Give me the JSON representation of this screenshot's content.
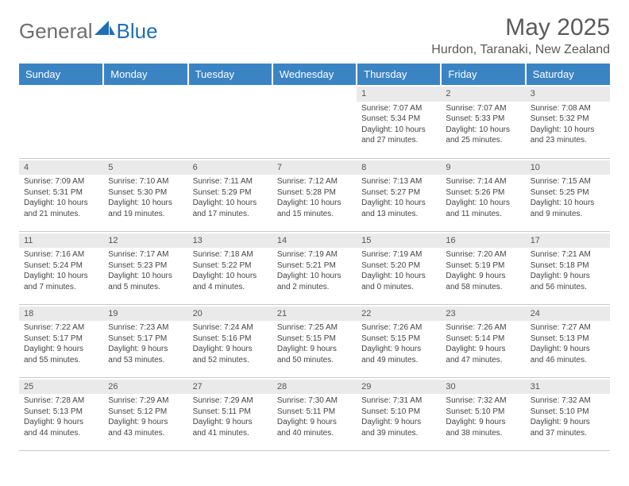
{
  "brand": {
    "word1": "General",
    "word2": "Blue"
  },
  "title": "May 2025",
  "location": "Hurdon, Taranaki, New Zealand",
  "colors": {
    "header_bg": "#3b84c4",
    "header_text": "#ffffff",
    "daynum_bg": "#eaeaea",
    "cell_border": "#c9c9c9",
    "body_text": "#444444",
    "title_text": "#5a5a5a",
    "logo_gray": "#6e6e6e",
    "logo_blue": "#1f6fb2"
  },
  "weekdays": [
    "Sunday",
    "Monday",
    "Tuesday",
    "Wednesday",
    "Thursday",
    "Friday",
    "Saturday"
  ],
  "weeks": [
    [
      null,
      null,
      null,
      null,
      {
        "n": "1",
        "sr": "Sunrise: 7:07 AM",
        "ss": "Sunset: 5:34 PM",
        "d1": "Daylight: 10 hours",
        "d2": "and 27 minutes."
      },
      {
        "n": "2",
        "sr": "Sunrise: 7:07 AM",
        "ss": "Sunset: 5:33 PM",
        "d1": "Daylight: 10 hours",
        "d2": "and 25 minutes."
      },
      {
        "n": "3",
        "sr": "Sunrise: 7:08 AM",
        "ss": "Sunset: 5:32 PM",
        "d1": "Daylight: 10 hours",
        "d2": "and 23 minutes."
      }
    ],
    [
      {
        "n": "4",
        "sr": "Sunrise: 7:09 AM",
        "ss": "Sunset: 5:31 PM",
        "d1": "Daylight: 10 hours",
        "d2": "and 21 minutes."
      },
      {
        "n": "5",
        "sr": "Sunrise: 7:10 AM",
        "ss": "Sunset: 5:30 PM",
        "d1": "Daylight: 10 hours",
        "d2": "and 19 minutes."
      },
      {
        "n": "6",
        "sr": "Sunrise: 7:11 AM",
        "ss": "Sunset: 5:29 PM",
        "d1": "Daylight: 10 hours",
        "d2": "and 17 minutes."
      },
      {
        "n": "7",
        "sr": "Sunrise: 7:12 AM",
        "ss": "Sunset: 5:28 PM",
        "d1": "Daylight: 10 hours",
        "d2": "and 15 minutes."
      },
      {
        "n": "8",
        "sr": "Sunrise: 7:13 AM",
        "ss": "Sunset: 5:27 PM",
        "d1": "Daylight: 10 hours",
        "d2": "and 13 minutes."
      },
      {
        "n": "9",
        "sr": "Sunrise: 7:14 AM",
        "ss": "Sunset: 5:26 PM",
        "d1": "Daylight: 10 hours",
        "d2": "and 11 minutes."
      },
      {
        "n": "10",
        "sr": "Sunrise: 7:15 AM",
        "ss": "Sunset: 5:25 PM",
        "d1": "Daylight: 10 hours",
        "d2": "and 9 minutes."
      }
    ],
    [
      {
        "n": "11",
        "sr": "Sunrise: 7:16 AM",
        "ss": "Sunset: 5:24 PM",
        "d1": "Daylight: 10 hours",
        "d2": "and 7 minutes."
      },
      {
        "n": "12",
        "sr": "Sunrise: 7:17 AM",
        "ss": "Sunset: 5:23 PM",
        "d1": "Daylight: 10 hours",
        "d2": "and 5 minutes."
      },
      {
        "n": "13",
        "sr": "Sunrise: 7:18 AM",
        "ss": "Sunset: 5:22 PM",
        "d1": "Daylight: 10 hours",
        "d2": "and 4 minutes."
      },
      {
        "n": "14",
        "sr": "Sunrise: 7:19 AM",
        "ss": "Sunset: 5:21 PM",
        "d1": "Daylight: 10 hours",
        "d2": "and 2 minutes."
      },
      {
        "n": "15",
        "sr": "Sunrise: 7:19 AM",
        "ss": "Sunset: 5:20 PM",
        "d1": "Daylight: 10 hours",
        "d2": "and 0 minutes."
      },
      {
        "n": "16",
        "sr": "Sunrise: 7:20 AM",
        "ss": "Sunset: 5:19 PM",
        "d1": "Daylight: 9 hours",
        "d2": "and 58 minutes."
      },
      {
        "n": "17",
        "sr": "Sunrise: 7:21 AM",
        "ss": "Sunset: 5:18 PM",
        "d1": "Daylight: 9 hours",
        "d2": "and 56 minutes."
      }
    ],
    [
      {
        "n": "18",
        "sr": "Sunrise: 7:22 AM",
        "ss": "Sunset: 5:17 PM",
        "d1": "Daylight: 9 hours",
        "d2": "and 55 minutes."
      },
      {
        "n": "19",
        "sr": "Sunrise: 7:23 AM",
        "ss": "Sunset: 5:17 PM",
        "d1": "Daylight: 9 hours",
        "d2": "and 53 minutes."
      },
      {
        "n": "20",
        "sr": "Sunrise: 7:24 AM",
        "ss": "Sunset: 5:16 PM",
        "d1": "Daylight: 9 hours",
        "d2": "and 52 minutes."
      },
      {
        "n": "21",
        "sr": "Sunrise: 7:25 AM",
        "ss": "Sunset: 5:15 PM",
        "d1": "Daylight: 9 hours",
        "d2": "and 50 minutes."
      },
      {
        "n": "22",
        "sr": "Sunrise: 7:26 AM",
        "ss": "Sunset: 5:15 PM",
        "d1": "Daylight: 9 hours",
        "d2": "and 49 minutes."
      },
      {
        "n": "23",
        "sr": "Sunrise: 7:26 AM",
        "ss": "Sunset: 5:14 PM",
        "d1": "Daylight: 9 hours",
        "d2": "and 47 minutes."
      },
      {
        "n": "24",
        "sr": "Sunrise: 7:27 AM",
        "ss": "Sunset: 5:13 PM",
        "d1": "Daylight: 9 hours",
        "d2": "and 46 minutes."
      }
    ],
    [
      {
        "n": "25",
        "sr": "Sunrise: 7:28 AM",
        "ss": "Sunset: 5:13 PM",
        "d1": "Daylight: 9 hours",
        "d2": "and 44 minutes."
      },
      {
        "n": "26",
        "sr": "Sunrise: 7:29 AM",
        "ss": "Sunset: 5:12 PM",
        "d1": "Daylight: 9 hours",
        "d2": "and 43 minutes."
      },
      {
        "n": "27",
        "sr": "Sunrise: 7:29 AM",
        "ss": "Sunset: 5:11 PM",
        "d1": "Daylight: 9 hours",
        "d2": "and 41 minutes."
      },
      {
        "n": "28",
        "sr": "Sunrise: 7:30 AM",
        "ss": "Sunset: 5:11 PM",
        "d1": "Daylight: 9 hours",
        "d2": "and 40 minutes."
      },
      {
        "n": "29",
        "sr": "Sunrise: 7:31 AM",
        "ss": "Sunset: 5:10 PM",
        "d1": "Daylight: 9 hours",
        "d2": "and 39 minutes."
      },
      {
        "n": "30",
        "sr": "Sunrise: 7:32 AM",
        "ss": "Sunset: 5:10 PM",
        "d1": "Daylight: 9 hours",
        "d2": "and 38 minutes."
      },
      {
        "n": "31",
        "sr": "Sunrise: 7:32 AM",
        "ss": "Sunset: 5:10 PM",
        "d1": "Daylight: 9 hours",
        "d2": "and 37 minutes."
      }
    ]
  ]
}
